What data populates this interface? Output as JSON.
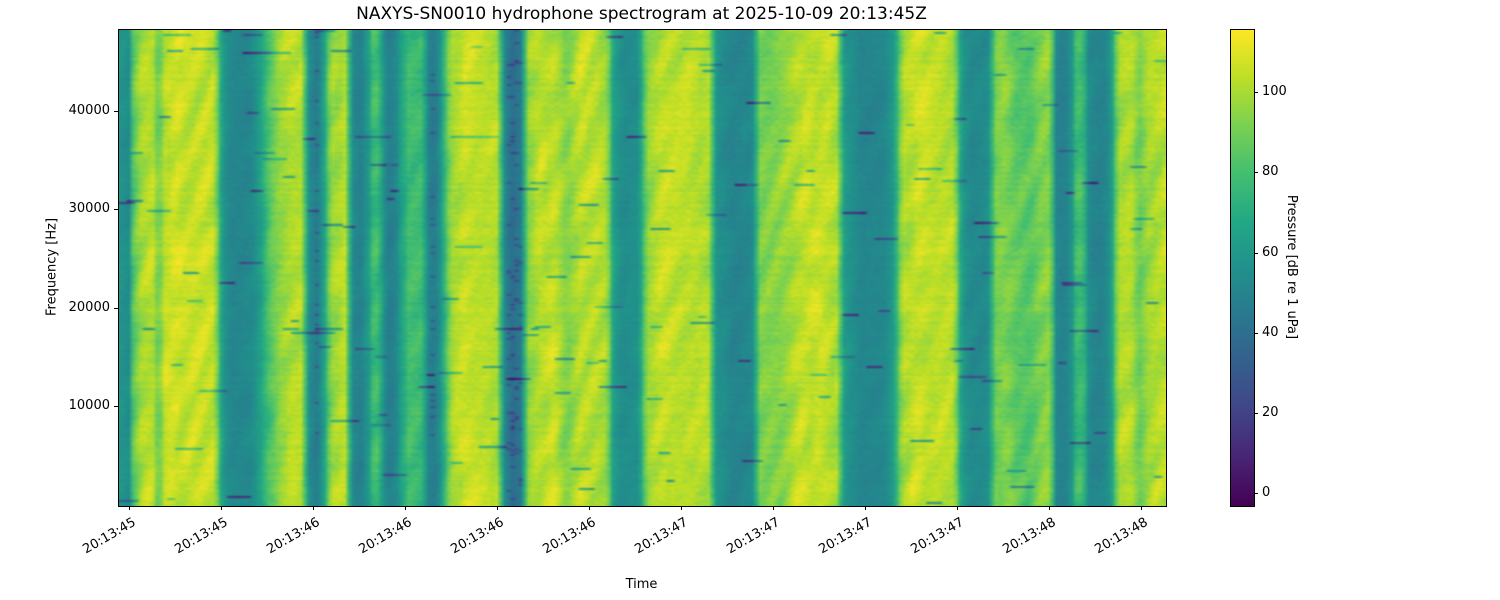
{
  "figure": {
    "title": "NAXYS-SN0010 hydrophone spectrogram at 2025-10-09 20:13:45Z",
    "xlabel": "Time",
    "ylabel": "Frequency [Hz]",
    "colorbar_label": "Pressure [dB re 1 uPa]"
  },
  "axes": {
    "x": {
      "label": "Time",
      "tick_labels": [
        "20:13:45",
        "20:13:45",
        "20:13:46",
        "20:13:46",
        "20:13:46",
        "20:13:46",
        "20:13:47",
        "20:13:47",
        "20:13:47",
        "20:13:47",
        "20:13:48",
        "20:13:48"
      ],
      "tick_positions": [
        0.0105,
        0.0984,
        0.1863,
        0.2742,
        0.3621,
        0.45,
        0.5379,
        0.6258,
        0.7137,
        0.8016,
        0.8895,
        0.9774
      ]
    },
    "y": {
      "label": "Frequency [Hz]",
      "tick_labels": [
        "10000",
        "20000",
        "30000",
        "40000"
      ],
      "tick_positions": [
        0.207,
        0.414,
        0.621,
        0.828
      ]
    },
    "colorbar": {
      "label": "Pressure [dB re 1 uPa]",
      "tick_labels": [
        "0",
        "20",
        "40",
        "60",
        "80",
        "100"
      ],
      "tick_positions": [
        0.025,
        0.193,
        0.362,
        0.53,
        0.699,
        0.868
      ]
    }
  },
  "chart_data": {
    "type": "heatmap",
    "title": "NAXYS-SN0010 hydrophone spectrogram at 2025-10-09 20:13:45Z",
    "xlabel": "Time",
    "ylabel": "Frequency [Hz]",
    "value_label": "Pressure [dB re 1 uPa]",
    "colormap": "viridis",
    "value_range": [
      -3,
      115.7
    ],
    "colorbar_tick_values": [
      0,
      20,
      40,
      60,
      80,
      100
    ],
    "freq_range_hz": [
      0,
      48000
    ],
    "freq_tick_values_hz": [
      10000,
      20000,
      30000,
      40000
    ],
    "time_start_label": "20:13:45",
    "time_end_label": "20:13:48",
    "time_tick_labels": [
      "20:13:45",
      "20:13:45",
      "20:13:46",
      "20:13:46",
      "20:13:46",
      "20:13:46",
      "20:13:47",
      "20:13:47",
      "20:13:47",
      "20:13:47",
      "20:13:48",
      "20:13:48"
    ],
    "time_profile_db": {
      "t": [
        0.0,
        0.008,
        0.012,
        0.02,
        0.03,
        0.036,
        0.042,
        0.055,
        0.075,
        0.09,
        0.097,
        0.105,
        0.125,
        0.133,
        0.141,
        0.152,
        0.163,
        0.173,
        0.18,
        0.187,
        0.194,
        0.201,
        0.215,
        0.221,
        0.229,
        0.237,
        0.243,
        0.249,
        0.255,
        0.263,
        0.269,
        0.276,
        0.289,
        0.295,
        0.301,
        0.307,
        0.316,
        0.33,
        0.35,
        0.361,
        0.367,
        0.374,
        0.383,
        0.39,
        0.402,
        0.415,
        0.427,
        0.44,
        0.456,
        0.466,
        0.472,
        0.481,
        0.496,
        0.504,
        0.518,
        0.545,
        0.563,
        0.571,
        0.585,
        0.605,
        0.613,
        0.62,
        0.632,
        0.648,
        0.667,
        0.686,
        0.694,
        0.71,
        0.731,
        0.741,
        0.749,
        0.765,
        0.786,
        0.799,
        0.806,
        0.815,
        0.831,
        0.839,
        0.848,
        0.858,
        0.871,
        0.882,
        0.891,
        0.896,
        0.903,
        0.911,
        0.916,
        0.922,
        0.928,
        0.941,
        0.949,
        0.956,
        0.968,
        0.976,
        0.985,
        1.0
      ],
      "db": [
        58,
        55,
        88,
        102,
        104,
        88,
        105,
        106,
        105,
        103,
        60,
        52,
        52,
        63,
        80,
        97,
        103,
        101,
        55,
        45,
        60,
        98,
        102,
        55,
        48,
        60,
        85,
        70,
        48,
        50,
        65,
        78,
        76,
        50,
        45,
        60,
        100,
        106,
        105,
        102,
        55,
        38,
        45,
        95,
        104,
        105,
        92,
        105,
        104,
        99,
        62,
        55,
        56,
        95,
        104,
        105,
        102,
        58,
        50,
        52,
        90,
        92,
        95,
        104,
        105,
        102,
        60,
        50,
        52,
        62,
        100,
        106,
        105,
        102,
        60,
        52,
        54,
        90,
        95,
        86,
        85,
        94,
        95,
        52,
        48,
        55,
        78,
        80,
        52,
        50,
        58,
        100,
        104,
        90,
        100,
        103
      ]
    },
    "viridis_stops": [
      "#440154",
      "#482475",
      "#414487",
      "#355f8d",
      "#2a788e",
      "#21918c",
      "#22a884",
      "#44bf70",
      "#7ad151",
      "#bddf26",
      "#fde725"
    ]
  }
}
